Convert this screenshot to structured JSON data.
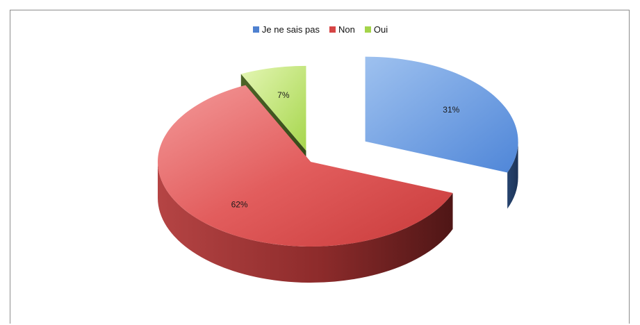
{
  "chart_data": {
    "type": "pie",
    "title": "",
    "legend_position": "top",
    "three_d": true,
    "exploded": true,
    "slices": [
      {
        "label": "Je ne sais pas",
        "value": 31,
        "data_label": "31%",
        "color": "#5b8fd6"
      },
      {
        "label": "Non",
        "value": 62,
        "data_label": "62%",
        "color": "#d44a4a"
      },
      {
        "label": "Oui",
        "value": 7,
        "data_label": "7%",
        "color": "#a8d84a"
      }
    ]
  }
}
